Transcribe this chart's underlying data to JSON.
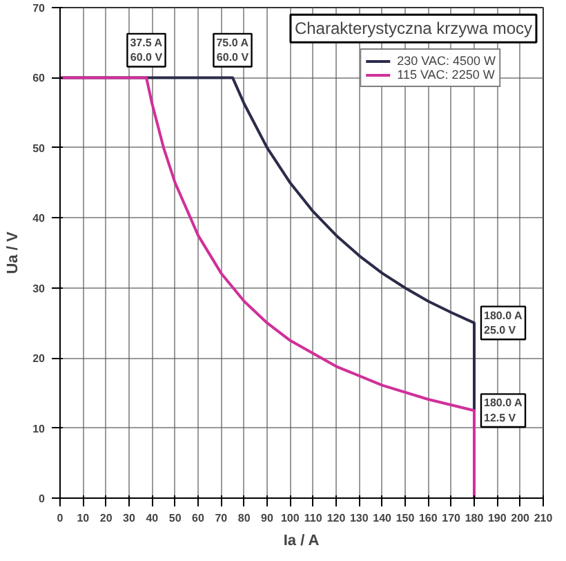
{
  "chart_data": {
    "type": "line",
    "title": "Charakterystyczna krzywa mocy",
    "xlabel": "Ia / A",
    "ylabel": "Ua / V",
    "xlim": [
      0,
      210
    ],
    "xticks": [
      0,
      10,
      20,
      30,
      40,
      50,
      60,
      70,
      80,
      90,
      100,
      110,
      120,
      130,
      140,
      150,
      160,
      170,
      180,
      190,
      200,
      210
    ],
    "ylim": [
      0,
      70
    ],
    "yticks": [
      0,
      10,
      20,
      30,
      40,
      50,
      60,
      70
    ],
    "grid": true,
    "legend": "top right",
    "marker": "none",
    "line_style": "solid",
    "series": [
      {
        "name": "230 VAC: 4500 W",
        "color": "#2b2b4a",
        "x": [
          0,
          75,
          80,
          90,
          100,
          110,
          120,
          130,
          140,
          150,
          160,
          170,
          180,
          180
        ],
        "values": [
          60,
          60,
          56.3,
          50,
          45,
          40.9,
          37.5,
          34.6,
          32.1,
          30,
          28.1,
          26.5,
          25,
          0
        ]
      },
      {
        "name": "115 VAC: 2250 W",
        "color": "#d0309a",
        "x": [
          0,
          37.5,
          40,
          45,
          50,
          60,
          70,
          80,
          90,
          100,
          120,
          140,
          160,
          180,
          180
        ],
        "values": [
          60,
          60,
          56.3,
          50,
          45,
          37.5,
          32.1,
          28.1,
          25,
          22.5,
          18.8,
          16.1,
          14.1,
          12.5,
          0
        ]
      }
    ],
    "annotations": [
      {
        "text": "37.5 A\n60.0 V",
        "x": 37.5,
        "y": 60
      },
      {
        "text": "75.0 A\n60.0 V",
        "x": 75,
        "y": 60
      },
      {
        "text": "180.0 A\n25.0 V",
        "x": 180,
        "y": 25
      },
      {
        "text": "180.0 A\n12.5 V",
        "x": 180,
        "y": 12.5
      }
    ]
  }
}
